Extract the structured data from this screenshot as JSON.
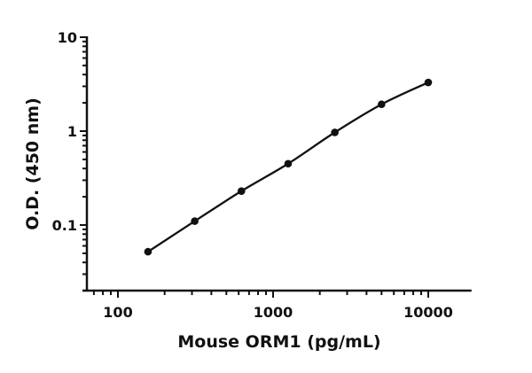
{
  "chart_data": {
    "type": "scatter",
    "xlabel": "Mouse ORM1 (pg/mL)",
    "ylabel": "O.D. (450 nm)",
    "xscale": "log",
    "yscale": "log",
    "xlim": [
      63,
      19000
    ],
    "ylim": [
      0.02,
      10
    ],
    "xticks": [
      {
        "value": 100,
        "label": "100"
      },
      {
        "value": 1000,
        "label": "1000"
      },
      {
        "value": 10000,
        "label": "10000"
      }
    ],
    "yticks": [
      {
        "value": 0.1,
        "label": "0.1"
      },
      {
        "value": 1,
        "label": "1"
      },
      {
        "value": 10,
        "label": "10"
      }
    ],
    "grid": false,
    "fit_curve": true,
    "series": [
      {
        "x": [
          156.25,
          312.5,
          625,
          1250,
          2500,
          5000,
          10000
        ],
        "y": [
          0.052,
          0.11,
          0.23,
          0.45,
          0.97,
          1.93,
          3.3
        ],
        "color": "#111111"
      }
    ]
  }
}
